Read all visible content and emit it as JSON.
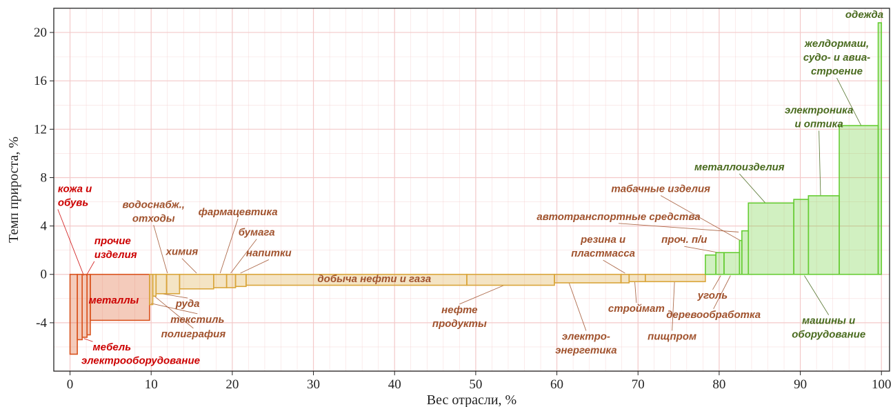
{
  "chart_data": {
    "type": "bar",
    "subtype": "variable-width waterfall (marimekko)",
    "xlabel": "Вес отрасли, %",
    "ylabel": "Темп прироста, %",
    "xlim": [
      -2,
      101
    ],
    "ylim": [
      -8,
      22
    ],
    "xticks": [
      0,
      10,
      20,
      30,
      40,
      50,
      60,
      70,
      80,
      90,
      100
    ],
    "yticks": [
      -4,
      0,
      4,
      8,
      12,
      16,
      20
    ],
    "grid": true,
    "colors": {
      "red": "#d9531e",
      "orange": "#d9a53a",
      "green": "#66cc33",
      "red_text": "#cc0000",
      "brown_text": "#a0522d",
      "green_text": "#4a6b1f",
      "grid": "#f3c9c9"
    },
    "segments": [
      {
        "name": "кожа и обувь",
        "x0": 0.0,
        "x1": 0.9,
        "value": -6.6,
        "group": "red"
      },
      {
        "name": "мебель",
        "x0": 0.9,
        "x1": 1.5,
        "value": -5.4,
        "group": "red"
      },
      {
        "name": "прочие изделия",
        "x0": 1.5,
        "x1": 2.1,
        "value": -5.2,
        "group": "red"
      },
      {
        "name": "электрооборудование",
        "x0": 2.1,
        "x1": 2.5,
        "value": -5.0,
        "group": "red"
      },
      {
        "name": "металлы",
        "x0": 2.5,
        "x1": 9.8,
        "value": -3.8,
        "group": "red"
      },
      {
        "name": "текстиль",
        "x0": 9.8,
        "x1": 10.2,
        "value": -2.5,
        "group": "orange"
      },
      {
        "name": "полиграфия",
        "x0": 10.2,
        "x1": 10.6,
        "value": -1.8,
        "group": "orange"
      },
      {
        "name": "руда",
        "x0": 10.6,
        "x1": 11.9,
        "value": -1.6,
        "group": "orange"
      },
      {
        "name": "водоснабж., отходы",
        "x0": 11.9,
        "x1": 13.5,
        "value": -1.6,
        "group": "orange"
      },
      {
        "name": "химия",
        "x0": 13.5,
        "x1": 17.7,
        "value": -1.2,
        "group": "orange"
      },
      {
        "name": "фармацевтика",
        "x0": 17.7,
        "x1": 19.3,
        "value": -1.1,
        "group": "orange"
      },
      {
        "name": "бумага",
        "x0": 19.3,
        "x1": 20.4,
        "value": -1.1,
        "group": "orange"
      },
      {
        "name": "напитки",
        "x0": 20.4,
        "x1": 21.7,
        "value": -1.0,
        "group": "orange"
      },
      {
        "name": "добыча нефти и газа",
        "x0": 21.7,
        "x1": 48.9,
        "value": -0.9,
        "group": "orange"
      },
      {
        "name": "нефте продукты",
        "x0": 48.9,
        "x1": 59.7,
        "value": -0.9,
        "group": "orange"
      },
      {
        "name": "электро-энергетика",
        "x0": 59.7,
        "x1": 67.9,
        "value": -0.7,
        "group": "orange"
      },
      {
        "name": "резина и пластмасса",
        "x0": 67.9,
        "x1": 68.9,
        "value": -0.7,
        "group": "orange"
      },
      {
        "name": "строймат",
        "x0": 68.9,
        "x1": 70.9,
        "value": -0.6,
        "group": "orange"
      },
      {
        "name": "пищпром",
        "x0": 70.9,
        "x1": 78.3,
        "value": -0.6,
        "group": "orange"
      },
      {
        "name": "уголь",
        "x0": 78.3,
        "x1": 79.6,
        "value": 1.6,
        "group": "green"
      },
      {
        "name": "проч. п/и",
        "x0": 79.6,
        "x1": 80.6,
        "value": 1.8,
        "group": "green"
      },
      {
        "name": "деревообработка",
        "x0": 80.6,
        "x1": 82.5,
        "value": 1.8,
        "group": "green"
      },
      {
        "name": "табачные изделия",
        "x0": 82.5,
        "x1": 82.8,
        "value": 2.8,
        "group": "green"
      },
      {
        "name": "автотранспортные средства",
        "x0": 82.8,
        "x1": 83.6,
        "value": 3.6,
        "group": "green"
      },
      {
        "name": "металлоизделия",
        "x0": 83.6,
        "x1": 89.2,
        "value": 5.9,
        "group": "green"
      },
      {
        "name": "машины и оборудование",
        "x0": 89.2,
        "x1": 91.0,
        "value": 6.2,
        "group": "green"
      },
      {
        "name": "электроника и оптика",
        "x0": 91.0,
        "x1": 94.8,
        "value": 6.5,
        "group": "green"
      },
      {
        "name": "желдормаш, судо- и авиа- строение",
        "x0": 94.8,
        "x1": 99.6,
        "value": 12.3,
        "group": "green"
      },
      {
        "name": "одежда",
        "x0": 99.6,
        "x1": 100.0,
        "value": 20.8,
        "group": "green"
      }
    ],
    "labels": [
      {
        "lines": [
          "кожа и",
          "обувь"
        ],
        "group": "red",
        "anchor": "start",
        "at": [
          -1.5,
          6.8
        ],
        "to": [
          1.7,
          -0.1
        ]
      },
      {
        "lines": [
          "прочие",
          "изделия"
        ],
        "group": "red",
        "anchor": "start",
        "at": [
          3.0,
          2.5
        ],
        "to": [
          2.0,
          -0.1
        ]
      },
      {
        "lines": [
          "металлы"
        ],
        "group": "red",
        "anchor": "start",
        "at": [
          2.3,
          -2.4
        ]
      },
      {
        "lines": [
          "мебель"
        ],
        "group": "red",
        "anchor": "start",
        "at": [
          2.8,
          -6.3
        ],
        "to": [
          1.7,
          -5.3
        ]
      },
      {
        "lines": [
          "электрооборудование"
        ],
        "group": "red",
        "anchor": "start",
        "at": [
          1.4,
          -7.4
        ]
      },
      {
        "lines": [
          "водоснабж.,",
          "отходы"
        ],
        "group": "brown",
        "anchor": "middle",
        "at": [
          10.3,
          5.5
        ],
        "to": [
          12.0,
          0.1
        ]
      },
      {
        "lines": [
          "химия"
        ],
        "group": "brown",
        "anchor": "middle",
        "at": [
          13.8,
          1.6
        ],
        "to": [
          15.6,
          0.1
        ]
      },
      {
        "lines": [
          "фармацевтика"
        ],
        "group": "brown",
        "anchor": "middle",
        "at": [
          20.7,
          4.9
        ],
        "to": [
          18.5,
          0.1
        ]
      },
      {
        "lines": [
          "бумага"
        ],
        "group": "brown",
        "anchor": "middle",
        "at": [
          23.0,
          3.2
        ],
        "to": [
          19.8,
          0.1
        ]
      },
      {
        "lines": [
          "напитки"
        ],
        "group": "brown",
        "anchor": "middle",
        "at": [
          24.5,
          1.5
        ],
        "to": [
          21.0,
          0.1
        ]
      },
      {
        "lines": [
          "добыча нефти и газа"
        ],
        "group": "brown",
        "anchor": "middle",
        "at": [
          37.5,
          -0.65
        ]
      },
      {
        "lines": [
          "руда"
        ],
        "group": "brown",
        "anchor": "middle",
        "at": [
          14.5,
          -2.7
        ],
        "to": [
          11.3,
          -1.6
        ]
      },
      {
        "lines": [
          "текстиль"
        ],
        "group": "brown",
        "anchor": "middle",
        "at": [
          15.7,
          -4.0
        ],
        "to": [
          10.0,
          -2.4
        ]
      },
      {
        "lines": [
          "полиграфия"
        ],
        "group": "brown",
        "anchor": "middle",
        "at": [
          15.2,
          -5.2
        ],
        "to": [
          10.4,
          -1.8
        ]
      },
      {
        "lines": [
          "нефте",
          "продукты"
        ],
        "group": "brown",
        "anchor": "middle",
        "at": [
          48.0,
          -3.2
        ],
        "to": [
          53.5,
          -0.9
        ]
      },
      {
        "lines": [
          "электро-",
          "энергетика"
        ],
        "group": "brown",
        "anchor": "middle",
        "at": [
          63.6,
          -5.4
        ],
        "to": [
          61.5,
          -0.7
        ]
      },
      {
        "lines": [
          "строймат"
        ],
        "group": "brown",
        "anchor": "middle",
        "at": [
          69.8,
          -3.1
        ],
        "to": [
          69.6,
          -0.6
        ]
      },
      {
        "lines": [
          "пищпром"
        ],
        "group": "brown",
        "anchor": "middle",
        "at": [
          74.2,
          -5.4
        ],
        "to": [
          74.5,
          -0.6
        ]
      },
      {
        "lines": [
          "резина и",
          "пластмасса"
        ],
        "group": "brown",
        "anchor": "middle",
        "at": [
          65.7,
          2.6
        ],
        "to": [
          68.4,
          0.1
        ]
      },
      {
        "lines": [
          "проч. п/и"
        ],
        "group": "brown",
        "anchor": "middle",
        "at": [
          75.7,
          2.6
        ],
        "to": [
          79.9,
          1.8
        ]
      },
      {
        "lines": [
          "автотранспортные средства"
        ],
        "group": "brown",
        "anchor": "middle",
        "at": [
          67.6,
          4.5
        ],
        "to": [
          82.4,
          3.5
        ]
      },
      {
        "lines": [
          "табачные изделия"
        ],
        "group": "brown",
        "anchor": "middle",
        "at": [
          72.8,
          6.8
        ],
        "to": [
          82.6,
          2.8
        ]
      },
      {
        "lines": [
          "уголь"
        ],
        "group": "brown",
        "anchor": "middle",
        "at": [
          79.2,
          -2.0
        ],
        "to": [
          80.2,
          -0.1
        ]
      },
      {
        "lines": [
          "деревообработка"
        ],
        "group": "brown",
        "anchor": "middle",
        "at": [
          79.3,
          -3.6
        ],
        "to": [
          81.4,
          -0.1
        ]
      },
      {
        "lines": [
          "металлоизделия"
        ],
        "group": "green",
        "anchor": "middle",
        "at": [
          82.5,
          8.6
        ],
        "to": [
          85.7,
          5.9
        ]
      },
      {
        "lines": [
          "машины и",
          "оборудование"
        ],
        "group": "green",
        "anchor": "middle",
        "at": [
          93.5,
          -4.1
        ],
        "to": [
          90.5,
          -0.1
        ]
      },
      {
        "lines": [
          "электроника",
          "и оптика"
        ],
        "group": "green",
        "anchor": "middle",
        "at": [
          92.3,
          13.3
        ],
        "to": [
          92.5,
          6.5
        ]
      },
      {
        "lines": [
          "желдормаш,",
          "судо- и авиа-",
          "строение"
        ],
        "group": "green",
        "anchor": "middle",
        "at": [
          94.5,
          18.8
        ],
        "to": [
          97.5,
          12.3
        ]
      },
      {
        "lines": [
          "одежда"
        ],
        "group": "green",
        "anchor": "middle",
        "at": [
          97.9,
          21.2
        ]
      }
    ]
  }
}
